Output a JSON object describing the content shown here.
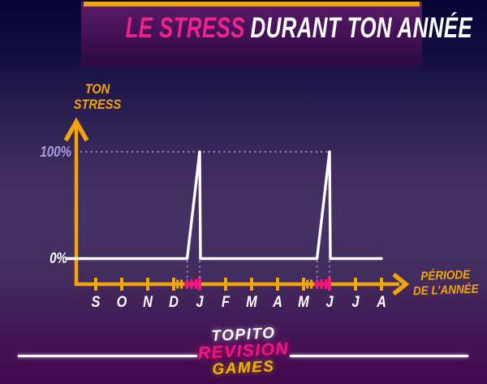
{
  "header": {
    "title_accent": "LE STRESS",
    "title_rest": "DURANT TON ANNÉE"
  },
  "chart_data": {
    "type": "line",
    "title": "LE STRESS DURANT TON ANNÉE",
    "ylabel": "TON STRESS",
    "xlabel": "PÉRIODE DE L’ANNÉE",
    "ylabel_lines": [
      "TON",
      "STRESS"
    ],
    "xlabel_lines": [
      "PÉRIODE",
      "DE L’ANNÉE"
    ],
    "categories": [
      "S",
      "O",
      "N",
      "D",
      "J",
      "F",
      "M",
      "A",
      "M",
      "J",
      "J",
      "A"
    ],
    "y_ticks": [
      {
        "label": "0%",
        "value": 0
      },
      {
        "label": "100%",
        "value": 100
      }
    ],
    "ylim": [
      0,
      100
    ],
    "grid": false,
    "series": [
      {
        "name": "Ton stress",
        "points": [
          [
            -1.12,
            0
          ],
          [
            3.52,
            0
          ],
          [
            4.0,
            100
          ],
          [
            4.03,
            0
          ],
          [
            8.52,
            0
          ],
          [
            9.0,
            100
          ],
          [
            9.03,
            0
          ],
          [
            11.0,
            0
          ]
        ]
      }
    ],
    "exam_periods": [
      {
        "from": 3.41,
        "to": 4.02
      },
      {
        "from": 8.41,
        "to": 9.02
      }
    ],
    "exam_month_indices": [
      4,
      9
    ],
    "minor_ticks_yellow": [
      3.15,
      3.3,
      8.15,
      8.3
    ],
    "minor_ticks_pink": [
      3.52,
      3.69,
      3.86,
      8.52,
      8.69,
      8.86
    ],
    "guides": {
      "horizontal_value": 100,
      "vertical_months": [
        3.52,
        4.0,
        8.52,
        9.0
      ]
    },
    "colors": {
      "axis_yellow": "#F2A40B",
      "curve_white": "#FFFFFF",
      "exam_pink": "#F5157E",
      "guide_lavender": "#8F80D6",
      "tick_100_lavender": "#A99BE0",
      "title_pink": "#F3218A",
      "background_navy_top": "#060434",
      "background_purple_mid": "#443264",
      "background_bottom": "#420A4F",
      "header_band_purple": "#47125A"
    }
  },
  "footer": {
    "brand_lines": [
      "TOPITO",
      "REVISION",
      "GAMES"
    ]
  }
}
